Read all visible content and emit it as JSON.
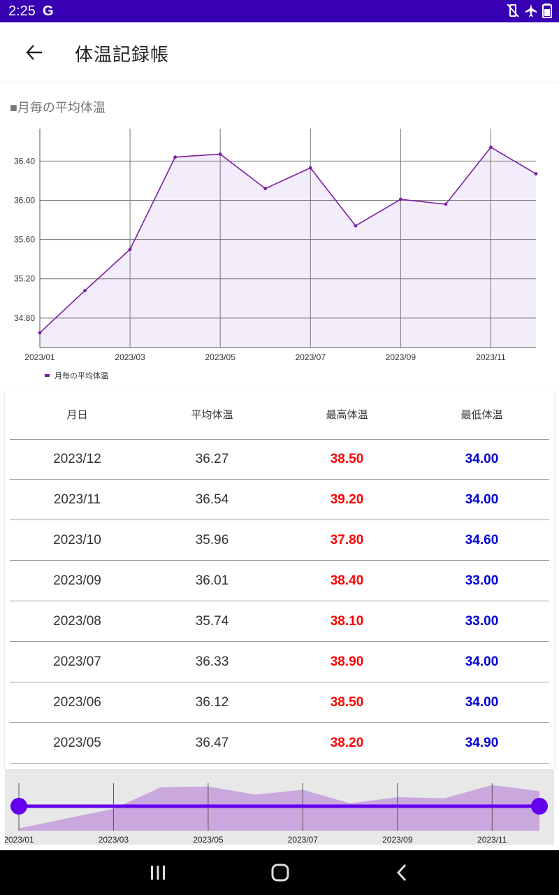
{
  "status_bar": {
    "time": "2:25",
    "g_label": "G"
  },
  "app_bar": {
    "title": "体温記録帳"
  },
  "chart_title": "■月毎の平均体温",
  "chart_data": {
    "type": "area",
    "title": "",
    "x": [
      "2023/01",
      "2023/02",
      "2023/03",
      "2023/04",
      "2023/05",
      "2023/06",
      "2023/07",
      "2023/08",
      "2023/09",
      "2023/10",
      "2023/11",
      "2023/12"
    ],
    "x_tick_labels": [
      "2023/01",
      "2023/03",
      "2023/05",
      "2023/07",
      "2023/09",
      "2023/11"
    ],
    "series": [
      {
        "name": "月毎の平均体温",
        "values": [
          34.65,
          35.08,
          35.5,
          36.44,
          36.47,
          36.12,
          36.33,
          35.74,
          36.01,
          35.96,
          36.54,
          36.27
        ]
      }
    ],
    "y_ticks": [
      "34.80",
      "35.20",
      "35.60",
      "36.00",
      "36.40"
    ],
    "ylim": [
      34.5,
      36.73
    ],
    "grid": true,
    "legend_position": "bottom-left",
    "line_color": "#7b1fa2",
    "fill_color": "#f3ecfb"
  },
  "table": {
    "headers": [
      "月日",
      "平均体温",
      "最高体温",
      "最低体温"
    ],
    "rows": [
      {
        "month": "2023/12",
        "avg": "36.27",
        "max": "38.50",
        "min": "34.00"
      },
      {
        "month": "2023/11",
        "avg": "36.54",
        "max": "39.20",
        "min": "34.00"
      },
      {
        "month": "2023/10",
        "avg": "35.96",
        "max": "37.80",
        "min": "34.60"
      },
      {
        "month": "2023/09",
        "avg": "36.01",
        "max": "38.40",
        "min": "33.00"
      },
      {
        "month": "2023/08",
        "avg": "35.74",
        "max": "38.10",
        "min": "33.00"
      },
      {
        "month": "2023/07",
        "avg": "36.33",
        "max": "38.90",
        "min": "34.00"
      },
      {
        "month": "2023/06",
        "avg": "36.12",
        "max": "38.50",
        "min": "34.00"
      },
      {
        "month": "2023/05",
        "avg": "36.47",
        "max": "38.20",
        "min": "34.90"
      }
    ]
  },
  "navigator": {
    "tick_labels": [
      "2023/01",
      "2023/03",
      "2023/05",
      "2023/07",
      "2023/09",
      "2023/11"
    ],
    "range_start": 0,
    "range_end": 1
  },
  "colors": {
    "status_bar": "#3700b3",
    "accent": "#6200ee",
    "max_text": "#ff0000",
    "min_text": "#0000d6"
  },
  "icons": {
    "back": "arrow-left-icon",
    "recent": "recent-apps-icon",
    "home": "home-icon",
    "nav_back": "chevron-left-icon"
  }
}
